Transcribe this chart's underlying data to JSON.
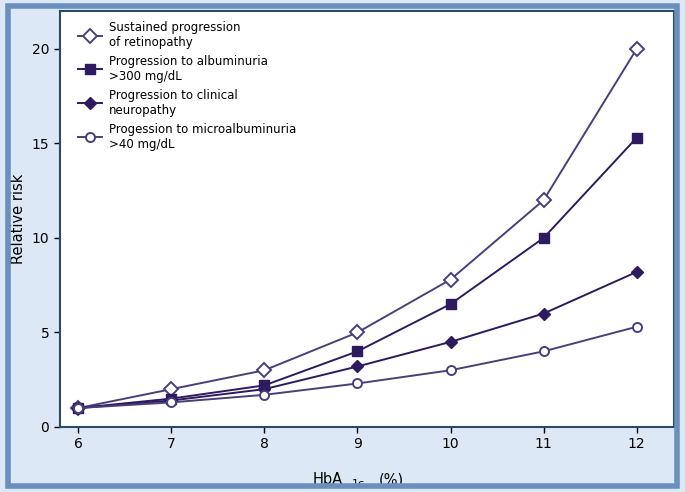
{
  "x": [
    6,
    7,
    8,
    9,
    10,
    11,
    12
  ],
  "retinopathy": [
    1.0,
    2.0,
    3.0,
    5.0,
    7.8,
    12.0,
    20.0
  ],
  "albuminuria": [
    1.0,
    1.5,
    2.2,
    4.0,
    6.5,
    10.0,
    15.3
  ],
  "neuropathy": [
    1.0,
    1.4,
    2.0,
    3.2,
    4.5,
    6.0,
    8.2
  ],
  "microalbuminuria": [
    1.0,
    1.3,
    1.7,
    2.3,
    3.0,
    4.0,
    5.3
  ],
  "line_color_open": "#4a3f7a",
  "line_color_filled": "#2e1a5e",
  "ylabel": "Relative risk",
  "ylim": [
    0,
    22
  ],
  "yticks": [
    0,
    5,
    10,
    15,
    20
  ],
  "xticks": [
    6,
    7,
    8,
    9,
    10,
    11,
    12
  ],
  "legend_retinopathy": "Sustained progression\nof retinopathy",
  "legend_albuminuria": "Progression to albuminuria\n>300 mg/dL",
  "legend_neuropathy": "Progression to clinical\nneuropathy",
  "legend_microalbuminuria": "Progession to microalbuminuria\n>40 mg/dL",
  "outer_border_color": "#6b8fbd",
  "inner_border_color": "#2a4a6b",
  "bg_color": "#ffffff",
  "fig_bg_color": "#dce8f5"
}
